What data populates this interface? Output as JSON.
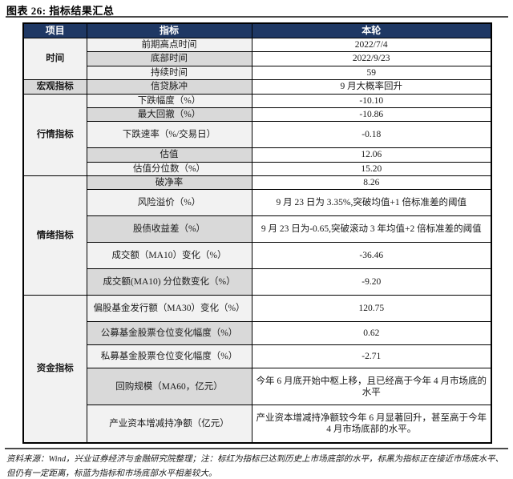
{
  "title": "图表 26: 指标结果汇总",
  "colors": {
    "header_bg": "#1F3864",
    "header_text": "#FFFFFF",
    "row_band_light": "#F2F2F2",
    "row_band_dark": "#D9D9D9",
    "value_col_bg": "#FFFFFF",
    "highlight_red": "#FF0000",
    "highlight_blue": "#2F5496",
    "border": "#000000"
  },
  "table": {
    "headers": [
      "项目",
      "指标",
      "本轮"
    ],
    "groups": [
      {
        "label": "时间",
        "span": 3
      },
      {
        "label": "宏观指标",
        "span": 1
      },
      {
        "label": "行情指标",
        "span": 5
      },
      {
        "label": "情绪指标",
        "span": 5
      },
      {
        "label": "资金指标",
        "span": 5
      }
    ],
    "rows": [
      {
        "indicator": "前期高点时间",
        "value": "2022/7/4",
        "value_color": "black"
      },
      {
        "indicator": "底部时间",
        "value": "2022/9/23",
        "value_color": "black"
      },
      {
        "indicator": "持续时间",
        "value": "59",
        "value_color": "black"
      },
      {
        "indicator": "信贷脉冲",
        "value": "9 月大概率回升",
        "value_color": "black"
      },
      {
        "indicator": "下跌幅度（%）",
        "value": "-10.10",
        "value_color": "black"
      },
      {
        "indicator": "最大回撤（%）",
        "value": "-10.86",
        "value_color": "black"
      },
      {
        "indicator": "下跌速率（%/交易日）",
        "value": "-0.18",
        "value_color": "black"
      },
      {
        "indicator": "估值",
        "value": "12.06",
        "value_color": "black"
      },
      {
        "indicator": "估值分位数（%）",
        "value": "15.20",
        "value_color": "black"
      },
      {
        "indicator": "破净率",
        "value": "8.26",
        "value_color": "black"
      },
      {
        "indicator": "风险溢价（%）",
        "value": "9 月 23 日为 3.35%,突破均值+1 倍标准差的阈值",
        "value_color": "red"
      },
      {
        "indicator": "股债收益差（%）",
        "value": "9 月 23 日为-0.65,突破滚动 3 年均值+2 倍标准差的阈值",
        "value_color": "red"
      },
      {
        "indicator": "成交额（MA10）变化（%）",
        "value": "-36.46",
        "value_color": "black"
      },
      {
        "indicator": "成交额(MA10) 分位数变化（%）",
        "value": "-9.20",
        "value_color": "black"
      },
      {
        "indicator": "偏股基金发行额（MA30）变化（%）",
        "value": "120.75",
        "value_color": "blue"
      },
      {
        "indicator": "公募基金股票仓位变化幅度（%）",
        "value": "0.62",
        "value_color": "blue"
      },
      {
        "indicator": "私募基金股票仓位变化幅度（%）",
        "value": "-2.71",
        "value_color": "black"
      },
      {
        "indicator": "回购规模（MA60，亿元）",
        "value": "今年 6 月底开始中枢上移，且已经高于今年 4 月市场底的水平",
        "value_color": "red"
      },
      {
        "indicator": "产业资本增减持净额（亿元）",
        "value": "产业资本增减持净额较今年 6 月显著回升，甚至高于今年 4 月市场底部的水平。",
        "value_color": "red"
      }
    ]
  },
  "footer": {
    "source_note": "资料来源：Wind，兴业证券经济与金融研究院整理；注：标红为指标已达到历史上市场底部的水平，标黑为指标正在接近市场底水平、但仍有一定距离，标蓝为指标和市场底部水平相差较大。"
  }
}
